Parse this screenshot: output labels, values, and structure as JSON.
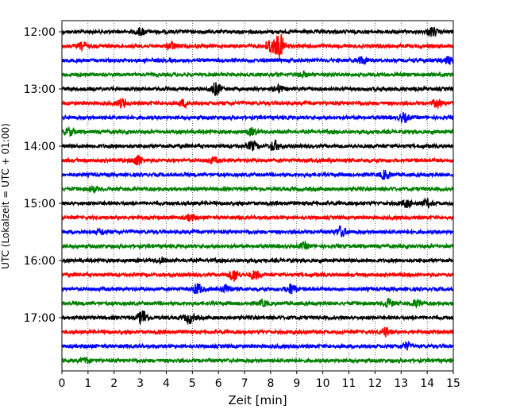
{
  "chart_data": {
    "type": "line",
    "title": "",
    "xlabel": "Zeit  [min]",
    "ylabel": "UTC (Lokalzeit = UTC + 01:00)",
    "xlim": [
      0,
      15
    ],
    "x_ticks": [
      0,
      1,
      2,
      3,
      4,
      5,
      6,
      7,
      8,
      9,
      10,
      11,
      12,
      13,
      14,
      15
    ],
    "x_tick_labels": [
      "0",
      "1",
      "2",
      "3",
      "4",
      "5",
      "6",
      "7",
      "8",
      "9",
      "10",
      "11",
      "12",
      "13",
      "14",
      "15"
    ],
    "y_tick_labels": [
      "12:00",
      "13:00",
      "14:00",
      "15:00",
      "16:00",
      "17:00"
    ],
    "grid": "vertical dotted",
    "trace_interval_minutes": 15,
    "trace_colors": [
      "#000000",
      "#ff0000",
      "#0000ff",
      "#008000"
    ],
    "series": [
      {
        "start": "12:00",
        "events": [
          [
            3.0,
            4
          ],
          [
            14.2,
            5
          ]
        ]
      },
      {
        "start": "12:15",
        "events": [
          [
            8.0,
            9
          ],
          [
            8.35,
            14
          ],
          [
            0.8,
            4
          ],
          [
            4.2,
            4
          ]
        ]
      },
      {
        "start": "12:30",
        "events": [
          [
            11.5,
            4
          ],
          [
            14.8,
            4
          ]
        ]
      },
      {
        "start": "12:45",
        "events": [
          [
            9.2,
            3
          ]
        ]
      },
      {
        "start": "13:00",
        "events": [
          [
            5.9,
            7
          ],
          [
            8.3,
            4
          ]
        ]
      },
      {
        "start": "13:15",
        "events": [
          [
            2.3,
            5
          ],
          [
            4.7,
            4
          ],
          [
            14.4,
            5
          ]
        ]
      },
      {
        "start": "13:30",
        "events": [
          [
            13.1,
            5
          ]
        ]
      },
      {
        "start": "13:45",
        "events": [
          [
            0.3,
            4
          ],
          [
            7.3,
            4
          ]
        ]
      },
      {
        "start": "14:00",
        "events": [
          [
            7.3,
            5
          ],
          [
            8.15,
            6
          ]
        ]
      },
      {
        "start": "14:15",
        "events": [
          [
            2.9,
            6
          ],
          [
            5.8,
            3
          ]
        ]
      },
      {
        "start": "14:30",
        "events": [
          [
            12.4,
            5
          ]
        ]
      },
      {
        "start": "14:45",
        "events": [
          [
            1.2,
            3
          ]
        ]
      },
      {
        "start": "15:00",
        "events": [
          [
            13.2,
            4
          ],
          [
            14.0,
            4
          ]
        ]
      },
      {
        "start": "15:15",
        "events": [
          [
            4.9,
            3
          ]
        ]
      },
      {
        "start": "15:30",
        "events": [
          [
            10.7,
            6
          ],
          [
            1.5,
            3
          ]
        ]
      },
      {
        "start": "15:45",
        "events": [
          [
            9.3,
            3
          ]
        ]
      },
      {
        "start": "16:00",
        "events": [
          [
            3.8,
            3
          ]
        ]
      },
      {
        "start": "16:15",
        "events": [
          [
            6.6,
            7
          ],
          [
            7.4,
            5
          ]
        ]
      },
      {
        "start": "16:30",
        "events": [
          [
            5.2,
            6
          ],
          [
            6.3,
            5
          ],
          [
            8.8,
            6
          ]
        ]
      },
      {
        "start": "16:45",
        "events": [
          [
            7.7,
            3
          ],
          [
            12.5,
            5
          ],
          [
            13.6,
            4
          ]
        ]
      },
      {
        "start": "17:00",
        "events": [
          [
            3.1,
            9
          ],
          [
            4.9,
            6
          ]
        ]
      },
      {
        "start": "17:15",
        "events": [
          [
            12.4,
            5
          ]
        ]
      },
      {
        "start": "17:30",
        "events": [
          [
            13.2,
            4
          ]
        ]
      },
      {
        "start": "17:45",
        "events": [
          [
            0.9,
            3
          ]
        ]
      }
    ]
  }
}
